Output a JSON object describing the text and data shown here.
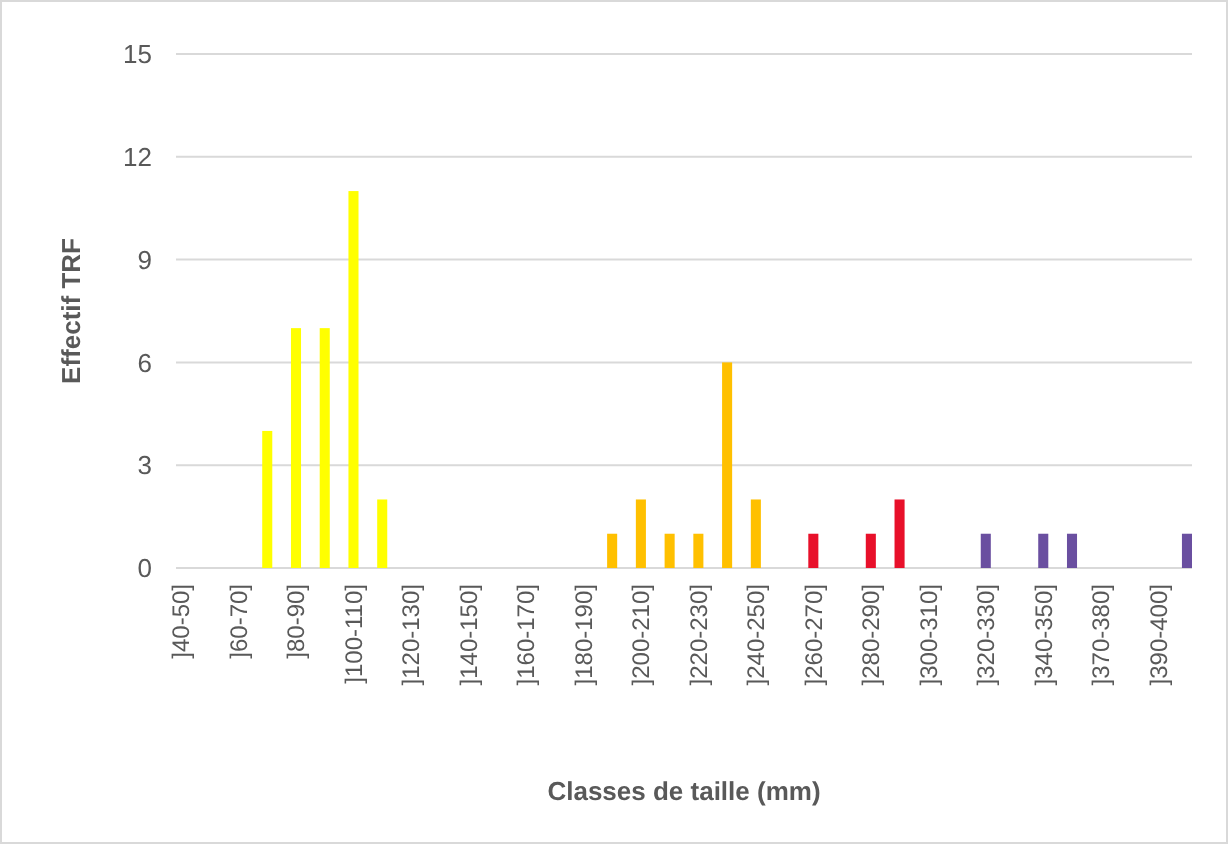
{
  "chart_data": {
    "type": "bar",
    "xlabel": "Classes de taille (mm)",
    "ylabel": "Effectif TRF",
    "categories": [
      "]40-50]",
      null,
      "]60-70]",
      null,
      "]80-90]",
      null,
      "]100-110]",
      null,
      "]120-130]",
      null,
      "]140-150]",
      null,
      "]160-170]",
      null,
      "]180-190]",
      null,
      "]200-210]",
      null,
      "]220-230]",
      null,
      "]240-250]",
      null,
      "]260-270]",
      null,
      "]280-290]",
      null,
      "]300-310]",
      null,
      "]320-330]",
      null,
      "]340-350]",
      null,
      "]370-380]",
      null,
      "]390-400]",
      null
    ],
    "values": [
      0,
      0,
      0,
      4,
      7,
      7,
      11,
      2,
      0,
      0,
      0,
      0,
      0,
      0,
      0,
      1,
      2,
      1,
      1,
      6,
      2,
      0,
      1,
      0,
      1,
      2,
      0,
      0,
      1,
      0,
      1,
      1,
      0,
      0,
      0,
      1
    ],
    "colors": [
      "#ffff00",
      "#ffff00",
      "#ffff00",
      "#ffff00",
      "#ffff00",
      "#ffff00",
      "#ffff00",
      "#ffff00",
      "#ffff00",
      "#ffff00",
      "#ffff00",
      "#ffff00",
      "#ffc000",
      "#ffc000",
      "#ffc000",
      "#ffc000",
      "#ffc000",
      "#ffc000",
      "#ffc000",
      "#ffc000",
      "#ffc000",
      "#e8102a",
      "#e8102a",
      "#e8102a",
      "#e8102a",
      "#e8102a",
      "#e8102a",
      "#6a4fa0",
      "#6a4fa0",
      "#6a4fa0",
      "#6a4fa0",
      "#6a4fa0",
      "#6a4fa0",
      "#6a4fa0",
      "#6a4fa0",
      "#6a4fa0"
    ],
    "ylim": [
      0,
      15
    ],
    "yticks": [
      0,
      3,
      6,
      9,
      12,
      15
    ],
    "grid": "y"
  }
}
